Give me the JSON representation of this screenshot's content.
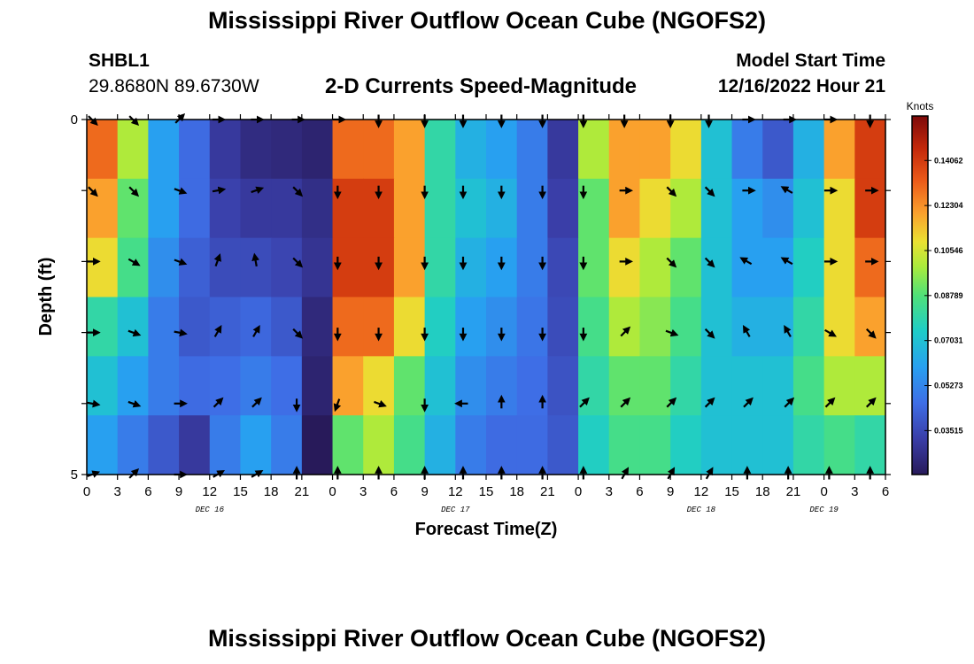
{
  "header": {
    "title": "Mississippi River Outflow Ocean Cube (NGOFS2)",
    "station": "SHBL1",
    "coords": "29.8680N  89.6730W",
    "subtitle": "2-D Currents Speed-Magnitude",
    "model_start_label": "Model Start Time",
    "model_start_value": "12/16/2022 Hour 21"
  },
  "footer": {
    "title": "Mississippi River Outflow Ocean Cube (NGOFS2)"
  },
  "chart_data": {
    "type": "heatmap",
    "xlabel": "Forecast Time(Z)",
    "ylabel": "Depth (ft)",
    "x_ticks": [
      "0",
      "3",
      "6",
      "9",
      "12",
      "15",
      "18",
      "21",
      "0",
      "3",
      "6",
      "9",
      "12",
      "15",
      "18",
      "21",
      "0",
      "3",
      "6",
      "9",
      "12",
      "15",
      "18",
      "21",
      "0",
      "3",
      "6"
    ],
    "y_ticks": [
      "0",
      "5"
    ],
    "date_labels": [
      "DEC 16",
      "DEC 17",
      "DEC 18",
      "DEC 19"
    ],
    "colorbar": {
      "unit": "Knots",
      "min": 0.018,
      "max": 0.158,
      "tick_values": [
        0.03515,
        0.05273,
        0.07031,
        0.08789,
        0.10546,
        0.12304,
        0.14062
      ],
      "tick_labels": [
        "0.03515",
        "0.05273",
        "0.07031",
        "0.08789",
        "0.10546",
        "0.12304",
        "0.14062"
      ]
    },
    "time_hours": [
      0,
      3,
      6,
      9,
      12,
      15,
      18,
      21,
      24,
      27,
      30,
      33,
      36,
      39,
      42,
      45,
      48,
      51,
      54,
      57,
      60,
      63,
      66,
      69,
      72,
      75,
      78
    ],
    "speed_knots": [
      [
        0.13,
        0.1,
        0.06,
        0.045,
        0.03,
        0.025,
        0.024,
        0.022,
        0.13,
        0.13,
        0.12,
        0.08,
        0.065,
        0.06,
        0.05,
        0.03,
        0.1,
        0.12,
        0.12,
        0.11,
        0.07,
        0.05,
        0.04,
        0.065,
        0.12,
        0.14,
        0.15
      ],
      [
        0.12,
        0.09,
        0.06,
        0.045,
        0.033,
        0.03,
        0.03,
        0.026,
        0.14,
        0.14,
        0.12,
        0.08,
        0.07,
        0.065,
        0.05,
        0.032,
        0.09,
        0.12,
        0.11,
        0.1,
        0.07,
        0.06,
        0.055,
        0.07,
        0.11,
        0.14,
        0.15
      ],
      [
        0.11,
        0.085,
        0.055,
        0.042,
        0.036,
        0.036,
        0.034,
        0.028,
        0.14,
        0.14,
        0.12,
        0.08,
        0.065,
        0.06,
        0.05,
        0.035,
        0.09,
        0.11,
        0.1,
        0.09,
        0.07,
        0.06,
        0.06,
        0.075,
        0.11,
        0.13,
        0.14
      ],
      [
        0.08,
        0.07,
        0.05,
        0.04,
        0.042,
        0.044,
        0.04,
        0.024,
        0.13,
        0.13,
        0.11,
        0.075,
        0.06,
        0.055,
        0.048,
        0.036,
        0.085,
        0.1,
        0.095,
        0.085,
        0.07,
        0.065,
        0.065,
        0.08,
        0.11,
        0.12,
        0.13
      ],
      [
        0.07,
        0.06,
        0.05,
        0.045,
        0.046,
        0.05,
        0.046,
        0.022,
        0.12,
        0.11,
        0.09,
        0.07,
        0.055,
        0.05,
        0.046,
        0.038,
        0.08,
        0.09,
        0.09,
        0.08,
        0.07,
        0.07,
        0.07,
        0.085,
        0.1,
        0.1,
        0.1
      ],
      [
        0.06,
        0.05,
        0.04,
        0.03,
        0.05,
        0.06,
        0.05,
        0.018,
        0.09,
        0.1,
        0.085,
        0.065,
        0.05,
        0.045,
        0.045,
        0.04,
        0.075,
        0.085,
        0.085,
        0.075,
        0.07,
        0.07,
        0.07,
        0.08,
        0.085,
        0.08,
        0.075
      ]
    ],
    "vector_times": [
      0.5,
      4.5,
      9,
      12.75,
      16.5,
      20.5,
      24.5,
      28.5,
      33,
      36.75,
      40.5,
      44.5,
      48.5,
      52.5,
      57,
      60.75,
      64.5,
      68.5,
      72.5,
      76.5
    ],
    "vector_depths": [
      0,
      1,
      2,
      3,
      4,
      5
    ],
    "direction_deg": [
      [
        135,
        135,
        45,
        90,
        90,
        90,
        90,
        180,
        180,
        180,
        180,
        180,
        180,
        180,
        180,
        180,
        90,
        90,
        90,
        180
      ],
      [
        135,
        135,
        110,
        80,
        70,
        135,
        180,
        180,
        180,
        180,
        180,
        180,
        180,
        90,
        135,
        135,
        90,
        300,
        90,
        90
      ],
      [
        90,
        120,
        110,
        20,
        350,
        135,
        180,
        180,
        180,
        180,
        180,
        180,
        180,
        90,
        135,
        135,
        300,
        300,
        90,
        90
      ],
      [
        90,
        110,
        100,
        30,
        30,
        135,
        180,
        180,
        180,
        180,
        180,
        180,
        180,
        45,
        110,
        135,
        330,
        330,
        120,
        135
      ],
      [
        100,
        110,
        90,
        45,
        45,
        180,
        200,
        110,
        180,
        270,
        0,
        0,
        45,
        45,
        45,
        45,
        45,
        45,
        45,
        45
      ],
      [
        70,
        45,
        90,
        60,
        60,
        0,
        0,
        0,
        0,
        0,
        0,
        0,
        0,
        30,
        30,
        30,
        0,
        0,
        0,
        0
      ]
    ]
  }
}
